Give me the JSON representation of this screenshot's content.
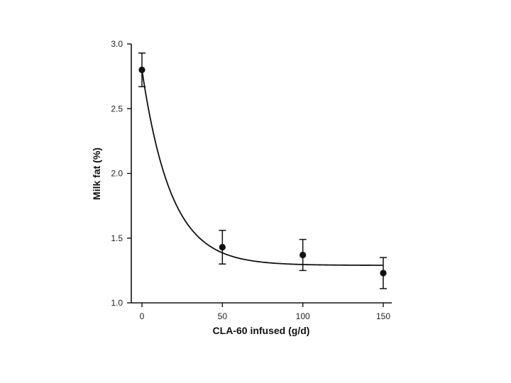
{
  "chart_data": {
    "type": "scatter",
    "title": "",
    "xlabel": "CLA-60 infused (g/d)",
    "ylabel": "Milk fat (%)",
    "xlim": [
      0,
      150
    ],
    "ylim": [
      1.0,
      3.0
    ],
    "x_ticks": [
      "0",
      "50",
      "100",
      "150"
    ],
    "y_ticks": [
      "1.0",
      "1.5",
      "2.0",
      "2.5",
      "3.0"
    ],
    "grid": false,
    "series": [
      {
        "points": [
          {
            "x": 0,
            "y": 2.8,
            "err": 0.13
          },
          {
            "x": 50,
            "y": 1.43,
            "err": 0.13
          },
          {
            "x": 100,
            "y": 1.37,
            "err": 0.12
          },
          {
            "x": 150,
            "y": 1.23,
            "err": 0.12
          }
        ]
      }
    ],
    "fitted_curve": {
      "type": "exponential decay",
      "asymptote": 1.29,
      "initial": 2.8,
      "rate": 0.055
    },
    "colors": {
      "ink": "#111111"
    }
  }
}
